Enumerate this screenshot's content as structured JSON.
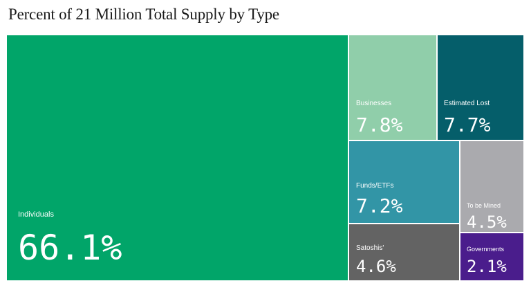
{
  "chart_data": {
    "type": "treemap",
    "title": "Percent of 21 Million Total Supply by Type",
    "unit": "%",
    "items": [
      {
        "label": "Individuals",
        "value": 66.1,
        "value_text": "66.1%",
        "color": "#01a569"
      },
      {
        "label": "Businesses",
        "value": 7.8,
        "value_text": "7.8%",
        "color": "#90ceaa"
      },
      {
        "label": "Estimated Lost",
        "value": 7.7,
        "value_text": "7.7%",
        "color": "#055e6a"
      },
      {
        "label": "Funds/ETFs",
        "value": 7.2,
        "value_text": "7.2%",
        "color": "#3295a6"
      },
      {
        "label": "To be Mined",
        "value": 4.5,
        "value_text": "4.5%",
        "color": "#aaaaae"
      },
      {
        "label": "Satoshis'",
        "value": 4.6,
        "value_text": "4.6%",
        "color": "#636363"
      },
      {
        "label": "Governments",
        "value": 2.1,
        "value_text": "2.1%",
        "color": "#4a1d8c"
      }
    ]
  }
}
